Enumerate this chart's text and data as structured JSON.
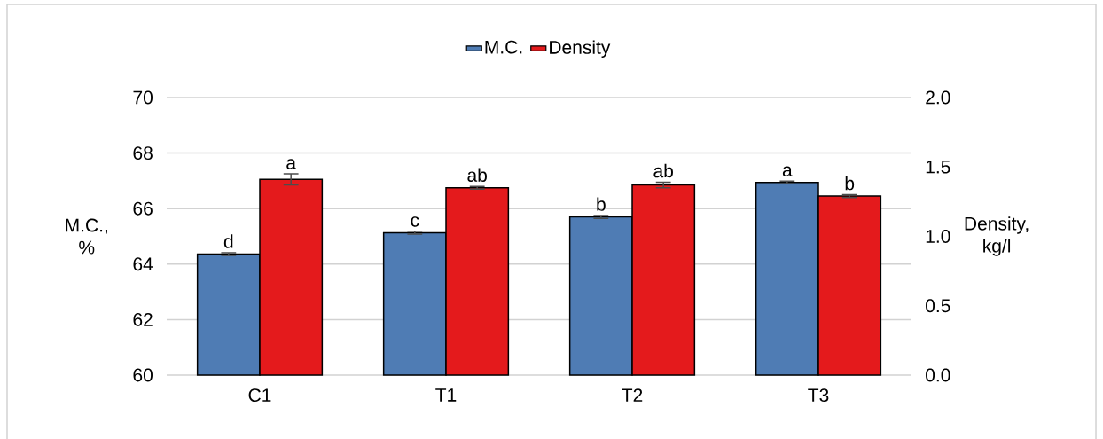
{
  "chart_data": {
    "type": "bar",
    "categories": [
      "C1",
      "T1",
      "T2",
      "T3"
    ],
    "series": [
      {
        "name": "M.C.",
        "color": "#4f7cb4",
        "values": [
          64.36,
          65.13,
          65.7,
          66.94
        ],
        "errors": [
          0.05,
          0.05,
          0.05,
          0.05
        ],
        "value_labels": [
          "d",
          "c",
          "b",
          "a"
        ]
      },
      {
        "name": "Density",
        "color": "#e41a1c",
        "axis": "y2",
        "values": [
          1.41,
          1.35,
          1.37,
          1.29
        ],
        "errors": [
          0.04,
          0.01,
          0.02,
          0.01
        ],
        "value_labels": [
          "a",
          "ab",
          "ab",
          "b"
        ]
      }
    ],
    "ylabel": "M.C., %",
    "y2label": "Density, kg/l",
    "ylim": [
      60,
      70
    ],
    "yticks": [
      60,
      62,
      64,
      66,
      68,
      70
    ],
    "y2lim": [
      0,
      2
    ],
    "y2ticks": [
      {
        "value": 0,
        "label": "0.0"
      },
      {
        "value": 0.5,
        "label": "0.5"
      },
      {
        "value": 1,
        "label": "1.0"
      },
      {
        "value": 1.5,
        "label": "1.5"
      },
      {
        "value": 2,
        "label": "2.0"
      }
    ],
    "grid": "y",
    "legend": "top"
  }
}
